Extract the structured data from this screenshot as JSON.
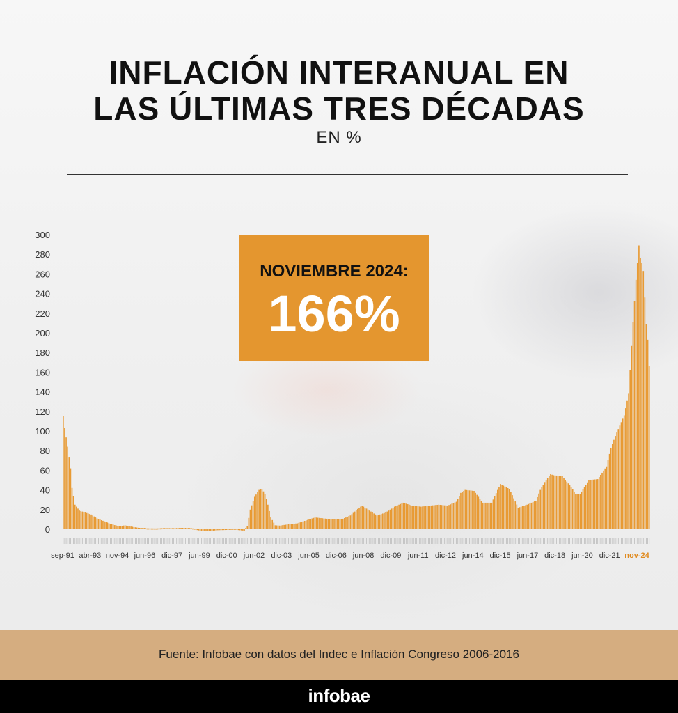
{
  "header": {
    "title_line1": "INFLACIÓN INTERANUAL EN",
    "title_line2": "LAS ÚLTIMAS TRES DÉCADAS",
    "subtitle": "EN %"
  },
  "callout": {
    "label": "NOVIEMBRE 2024:",
    "value": "166%"
  },
  "footer": {
    "source": "Fuente: Infobae con datos del Indec e Inflación Congreso 2006-2016",
    "brand": "infobae"
  },
  "colors": {
    "bar": "#e89a33",
    "highlight": "#e4962f",
    "axis_text": "#333333",
    "highlight_tick": "#e08a1e",
    "footer": "#d5ad80",
    "brandbar": "#000000"
  },
  "chart_data": {
    "type": "bar",
    "ylim": [
      0,
      300
    ],
    "yticks": [
      0,
      20,
      40,
      60,
      80,
      100,
      120,
      140,
      160,
      180,
      200,
      220,
      240,
      260,
      280,
      300
    ],
    "x_tick_labels": [
      "sep-91",
      "abr-93",
      "nov-94",
      "jun-96",
      "dic-97",
      "jun-99",
      "dic-00",
      "jun-02",
      "dic-03",
      "jun-05",
      "dic-06",
      "jun-08",
      "dic-09",
      "jun-11",
      "dic-12",
      "jun-14",
      "dic-15",
      "jun-17",
      "dic-18",
      "jun-20",
      "dic-21",
      "nov-24"
    ],
    "highlight_label": "nov-24",
    "series_start": "1991-09",
    "series_end": "2024-11",
    "anchors": [
      [
        "1991-09",
        115
      ],
      [
        "1991-10",
        103
      ],
      [
        "1991-12",
        84
      ],
      [
        "1992-02",
        62
      ],
      [
        "1992-03",
        42
      ],
      [
        "1992-05",
        25
      ],
      [
        "1992-08",
        19
      ],
      [
        "1992-12",
        17
      ],
      [
        "1993-04",
        15
      ],
      [
        "1993-08",
        11
      ],
      [
        "1994-01",
        8
      ],
      [
        "1994-06",
        5
      ],
      [
        "1994-11",
        3
      ],
      [
        "1995-03",
        4
      ],
      [
        "1995-06",
        3
      ],
      [
        "1995-12",
        1.5
      ],
      [
        "1996-06",
        0.2
      ],
      [
        "1996-12",
        0.1
      ],
      [
        "1997-06",
        0.5
      ],
      [
        "1997-12",
        0.4
      ],
      [
        "1998-06",
        0.8
      ],
      [
        "1998-12",
        0.5
      ],
      [
        "1999-06",
        -1.5
      ],
      [
        "1999-12",
        -1.8
      ],
      [
        "2000-06",
        -1
      ],
      [
        "2000-12",
        -0.7
      ],
      [
        "2001-06",
        -0.5
      ],
      [
        "2001-12",
        -1.5
      ],
      [
        "2002-02",
        3
      ],
      [
        "2002-04",
        20
      ],
      [
        "2002-07",
        33
      ],
      [
        "2002-10",
        40
      ],
      [
        "2002-12",
        41
      ],
      [
        "2003-02",
        36
      ],
      [
        "2003-04",
        25
      ],
      [
        "2003-06",
        12
      ],
      [
        "2003-09",
        4
      ],
      [
        "2003-12",
        3.7
      ],
      [
        "2004-06",
        5
      ],
      [
        "2004-12",
        6
      ],
      [
        "2005-06",
        9
      ],
      [
        "2005-12",
        12
      ],
      [
        "2006-06",
        11
      ],
      [
        "2006-12",
        10
      ],
      [
        "2007-06",
        10
      ],
      [
        "2007-12",
        14
      ],
      [
        "2008-06",
        22
      ],
      [
        "2008-08",
        24
      ],
      [
        "2008-12",
        20
      ],
      [
        "2009-06",
        14
      ],
      [
        "2009-12",
        17
      ],
      [
        "2010-06",
        23
      ],
      [
        "2010-12",
        27
      ],
      [
        "2011-06",
        24
      ],
      [
        "2011-12",
        23
      ],
      [
        "2012-06",
        24
      ],
      [
        "2012-12",
        25
      ],
      [
        "2013-06",
        24
      ],
      [
        "2013-12",
        28
      ],
      [
        "2014-03",
        37
      ],
      [
        "2014-06",
        40
      ],
      [
        "2014-12",
        39
      ],
      [
        "2015-06",
        27
      ],
      [
        "2015-12",
        27
      ],
      [
        "2016-04",
        40
      ],
      [
        "2016-06",
        46
      ],
      [
        "2016-12",
        41
      ],
      [
        "2017-06",
        22
      ],
      [
        "2017-12",
        25
      ],
      [
        "2018-06",
        29
      ],
      [
        "2018-09",
        40
      ],
      [
        "2018-12",
        48
      ],
      [
        "2019-04",
        56
      ],
      [
        "2019-06",
        55
      ],
      [
        "2019-12",
        54
      ],
      [
        "2020-06",
        43
      ],
      [
        "2020-09",
        36
      ],
      [
        "2020-12",
        36
      ],
      [
        "2021-06",
        50
      ],
      [
        "2021-12",
        51
      ],
      [
        "2022-06",
        64
      ],
      [
        "2022-09",
        83
      ],
      [
        "2022-12",
        95
      ],
      [
        "2023-06",
        116
      ],
      [
        "2023-09",
        138
      ],
      [
        "2023-12",
        211
      ],
      [
        "2024-02",
        254
      ],
      [
        "2024-04",
        289
      ],
      [
        "2024-05",
        276
      ],
      [
        "2024-06",
        271
      ],
      [
        "2024-07",
        263
      ],
      [
        "2024-08",
        236
      ],
      [
        "2024-09",
        209
      ],
      [
        "2024-10",
        193
      ],
      [
        "2024-11",
        166
      ]
    ]
  }
}
